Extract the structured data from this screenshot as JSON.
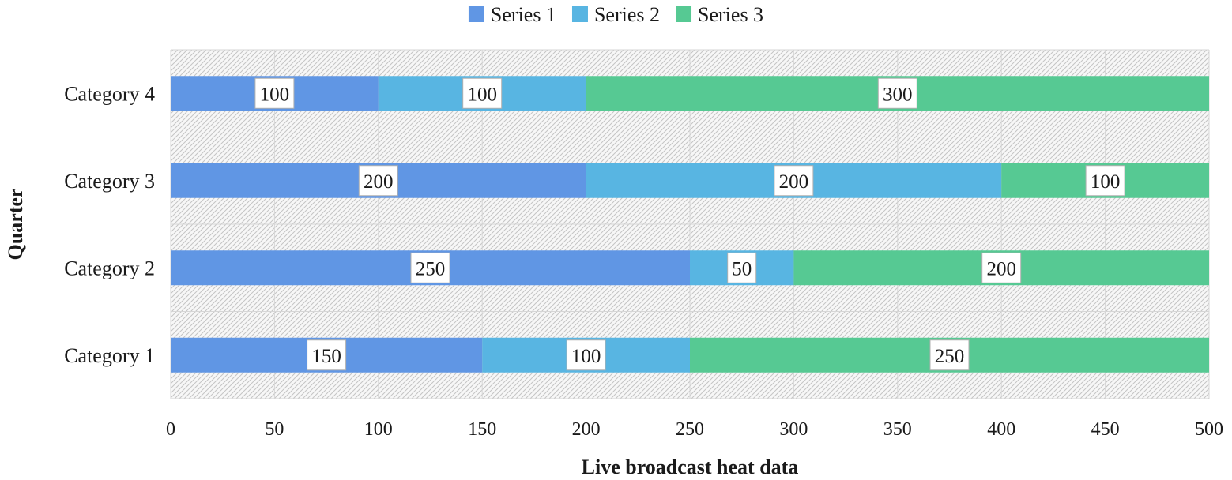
{
  "chart_data": {
    "type": "bar",
    "orientation": "horizontal",
    "stacked": true,
    "categories": [
      "Category 1",
      "Category 2",
      "Category 3",
      "Category 4"
    ],
    "series": [
      {
        "name": "Series 1",
        "color": "#6096e4",
        "values": [
          150,
          250,
          200,
          100
        ]
      },
      {
        "name": "Series 2",
        "color": "#58b5e2",
        "values": [
          100,
          50,
          200,
          100
        ]
      },
      {
        "name": "Series 3",
        "color": "#56c993",
        "values": [
          250,
          200,
          100,
          300
        ]
      }
    ],
    "title": "",
    "xlabel": "Live broadcast heat data",
    "ylabel": "Quarter",
    "xlim": [
      0,
      500
    ],
    "xticks": [
      0,
      50,
      100,
      150,
      200,
      250,
      300,
      350,
      400,
      450,
      500
    ],
    "grid": true,
    "legend_position": "top",
    "plot_background": "hatched",
    "data_labels": true
  }
}
